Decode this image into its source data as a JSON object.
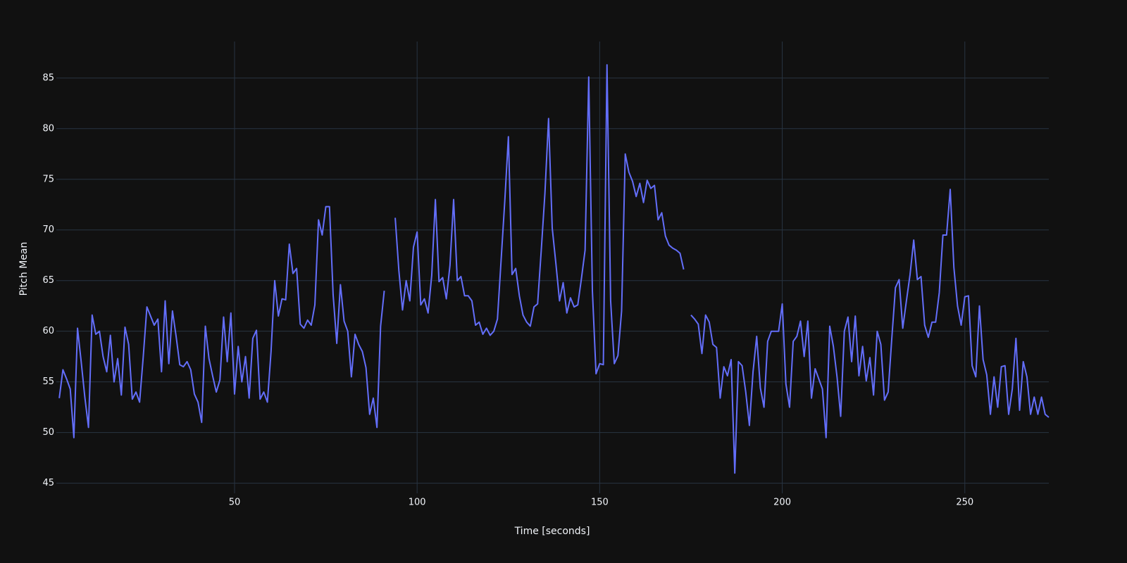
{
  "chart_data": {
    "type": "line",
    "xlabel": "Time [seconds]",
    "ylabel": "Pitch Mean",
    "x": [
      2,
      3,
      4,
      5,
      6,
      7,
      8,
      9,
      10,
      11,
      12,
      13,
      14,
      15,
      16,
      17,
      18,
      19,
      20,
      21,
      22,
      23,
      24,
      25,
      26,
      27,
      28,
      29,
      30,
      31,
      32,
      33,
      34,
      35,
      36,
      37,
      38,
      39,
      40,
      41,
      42,
      43,
      44,
      45,
      46,
      47,
      48,
      49,
      50,
      51,
      52,
      53,
      54,
      55,
      56,
      57,
      58,
      59,
      60,
      61,
      62,
      63,
      64,
      65,
      66,
      67,
      68,
      69,
      70,
      71,
      72,
      73,
      74,
      75,
      76,
      77,
      78,
      79,
      80,
      81,
      82,
      83,
      84,
      85,
      86,
      87,
      88,
      89,
      90,
      91,
      92,
      93,
      94,
      95,
      96,
      97,
      98,
      99,
      100,
      101,
      102,
      103,
      104,
      105,
      106,
      107,
      108,
      109,
      110,
      111,
      112,
      113,
      114,
      115,
      116,
      117,
      118,
      119,
      120,
      121,
      122,
      123,
      124,
      125,
      126,
      127,
      128,
      129,
      130,
      131,
      132,
      133,
      134,
      135,
      136,
      137,
      138,
      139,
      140,
      141,
      142,
      143,
      144,
      145,
      146,
      147,
      148,
      149,
      150,
      151,
      152,
      153,
      154,
      155,
      156,
      157,
      158,
      159,
      160,
      161,
      162,
      163,
      164,
      165,
      166,
      167,
      168,
      169,
      170,
      171,
      172,
      173,
      174,
      175,
      176,
      177,
      178,
      179,
      180,
      181,
      182,
      183,
      184,
      185,
      186,
      187,
      188,
      189,
      190,
      191,
      192,
      193,
      194,
      195,
      196,
      197,
      198,
      199,
      200,
      201,
      202,
      203,
      204,
      205,
      206,
      207,
      208,
      209,
      210,
      211,
      212,
      213,
      214,
      215,
      216,
      217,
      218,
      219,
      220,
      221,
      222,
      223,
      224,
      225,
      226,
      227,
      228,
      229,
      230,
      231,
      232,
      233,
      234,
      235,
      236,
      237,
      238,
      239,
      240,
      241,
      242,
      243,
      244,
      245,
      246,
      247,
      248,
      249,
      250,
      251,
      252,
      253,
      254,
      255,
      256,
      257,
      258,
      259,
      260,
      261,
      262,
      263,
      264,
      265,
      266,
      267,
      268,
      269,
      270,
      271,
      272,
      273
    ],
    "series": [
      {
        "color": "#636efa",
        "values": [
          53.4,
          56.2,
          55.3,
          54.3,
          49.5,
          60.3,
          57,
          53.5,
          50.5,
          61.6,
          59.7,
          60,
          57.5,
          56,
          59.6,
          55,
          57.3,
          53.7,
          60.4,
          58.7,
          53.3,
          54,
          53,
          57.5,
          62.4,
          61.5,
          60.6,
          61.2,
          56,
          63,
          56.8,
          62,
          59.5,
          56.7,
          56.5,
          57,
          56.2,
          53.8,
          53,
          51,
          60.5,
          57.3,
          55.6,
          54,
          55.2,
          61.4,
          57,
          61.8,
          53.8,
          58.5,
          55,
          57.5,
          53.4,
          59.3,
          60.1,
          53.3,
          54,
          53,
          58,
          65,
          61.5,
          63.2,
          63.1,
          68.6,
          65.7,
          66.2,
          60.7,
          60.3,
          61.1,
          60.6,
          62.6,
          71,
          69.5,
          72.3,
          72.3,
          63.6,
          58.8,
          64.6,
          61,
          60,
          55.5,
          59.7,
          58.7,
          58,
          56.4,
          51.8,
          53.4,
          50.5,
          60.5,
          64,
          null,
          null,
          71.2,
          66,
          62.1,
          65,
          63,
          68.3,
          69.8,
          62.6,
          63.2,
          61.8,
          65.5,
          73,
          64.9,
          65.3,
          63.2,
          66.5,
          73,
          65,
          65.4,
          63.5,
          63.5,
          63,
          60.6,
          60.9,
          59.7,
          60.3,
          59.6,
          60,
          61.2,
          67,
          72.8,
          79.2,
          65.6,
          66.2,
          63.5,
          61.6,
          60.9,
          60.5,
          62.4,
          62.7,
          68,
          73.6,
          81,
          70.2,
          66.7,
          63,
          64.8,
          61.8,
          63.3,
          62.4,
          62.6,
          65.2,
          68,
          85.1,
          64,
          55.8,
          56.8,
          56.7,
          86.3,
          63,
          56.8,
          57.6,
          62,
          77.5,
          75.7,
          74.8,
          73.3,
          74.6,
          72.7,
          74.9,
          74.1,
          74.4,
          71,
          71.7,
          69.4,
          68.5,
          68.2,
          68,
          67.7,
          66.1,
          null,
          61.6,
          61.2,
          60.7,
          57.8,
          61.6,
          60.9,
          58.7,
          58.4,
          53.4,
          56.5,
          55.6,
          57.2,
          46,
          57,
          56.6,
          54,
          50.7,
          56,
          59.5,
          54.4,
          52.5,
          59,
          60,
          60,
          60,
          62.7,
          54.8,
          52.5,
          59,
          59.5,
          61,
          57.5,
          61,
          53.4,
          56.3,
          55.3,
          54.3,
          49.5,
          60.5,
          58.5,
          55.5,
          51.6,
          60,
          61.4,
          57,
          61.5,
          55.6,
          58.5,
          55.1,
          57.4,
          53.7,
          60,
          58.7,
          53.2,
          54,
          59.3,
          64.3,
          65.1,
          60.3,
          63,
          65.6,
          69,
          65.1,
          65.4,
          60.6,
          59.4,
          60.9,
          60.9,
          63.8,
          69.5,
          69.5,
          74,
          66.3,
          62.5,
          60.6,
          63.4,
          63.5,
          56.6,
          55.5,
          62.5,
          57.2,
          55.7,
          51.8,
          55.5,
          52.5,
          56.5,
          56.6,
          51.8,
          54.3,
          59.3,
          52.2,
          57,
          55.5,
          51.8,
          53.5,
          51.8,
          53.5,
          51.8,
          51.5
        ]
      }
    ],
    "xlim": [
      1.2,
      273
    ],
    "xticks": [
      50,
      100,
      150,
      200,
      250
    ],
    "ylim": [
      44,
      88.6
    ],
    "yticks": [
      45,
      50,
      55,
      60,
      65,
      70,
      75,
      80,
      85
    ],
    "grid": true
  }
}
